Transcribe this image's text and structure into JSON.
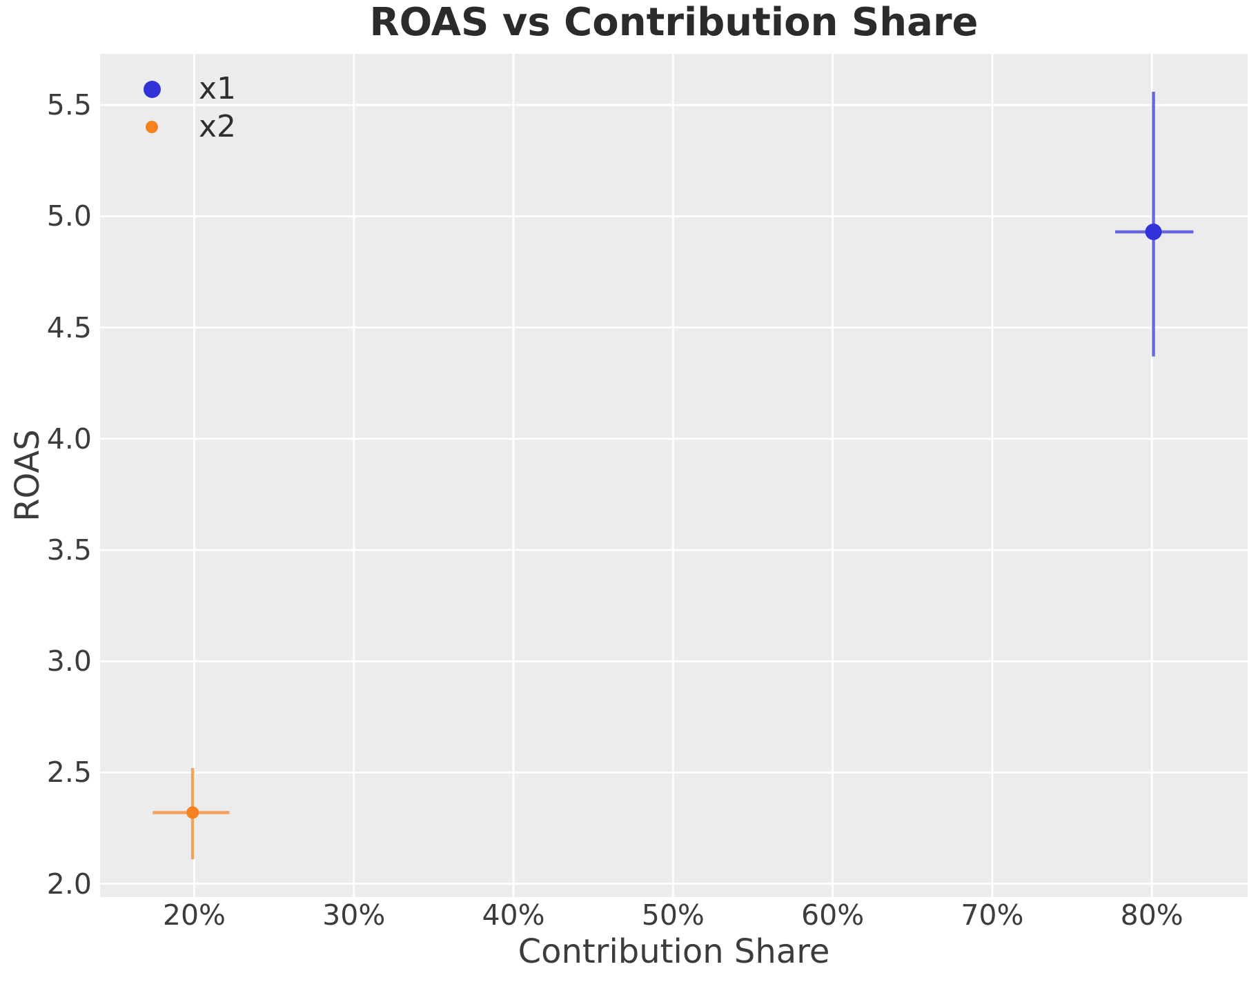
{
  "title": "ROAS vs Contribution Share",
  "colors": {
    "figure_background": "#ffffff",
    "plot_background": "#ececec",
    "grid": "#ffffff",
    "title_text": "#2b2b2b",
    "axis_text": "#3c3c3c",
    "series_x1": "#3232d9",
    "series_x2": "#f5821f"
  },
  "chart_data": {
    "type": "scatter",
    "title": "ROAS vs Contribution Share",
    "xlabel": "Contribution Share",
    "ylabel": "ROAS",
    "x_unit": "percent",
    "xlim": [
      14.1,
      86.0
    ],
    "ylim": [
      1.94,
      5.73
    ],
    "grid": true,
    "grid_color": "#ffffff",
    "plot_background": "#ececec",
    "legend_position": "upper left",
    "error_bar_alpha": 0.72,
    "error_bar_width": 4.5,
    "x_ticks": [
      {
        "value": 20,
        "label": "20%"
      },
      {
        "value": 30,
        "label": "30%"
      },
      {
        "value": 40,
        "label": "40%"
      },
      {
        "value": 50,
        "label": "50%"
      },
      {
        "value": 60,
        "label": "60%"
      },
      {
        "value": 70,
        "label": "70%"
      },
      {
        "value": 80,
        "label": "80%"
      }
    ],
    "y_ticks": [
      {
        "value": 2.0,
        "label": "2.0"
      },
      {
        "value": 2.5,
        "label": "2.5"
      },
      {
        "value": 3.0,
        "label": "3.0"
      },
      {
        "value": 3.5,
        "label": "3.5"
      },
      {
        "value": 4.0,
        "label": "4.0"
      },
      {
        "value": 4.5,
        "label": "4.5"
      },
      {
        "value": 5.0,
        "label": "5.0"
      },
      {
        "value": 5.5,
        "label": "5.5"
      }
    ],
    "series": [
      {
        "name": "x1",
        "color": "#3232d9",
        "marker_radius": 12,
        "legend_marker_radius": 12.5,
        "points": [
          {
            "x": 80.1,
            "y": 4.93,
            "x_err": [
              77.7,
              82.6
            ],
            "y_err": [
              4.37,
              5.56
            ]
          }
        ]
      },
      {
        "name": "x2",
        "color": "#f5821f",
        "marker_radius": 9,
        "legend_marker_radius": 9,
        "points": [
          {
            "x": 19.9,
            "y": 2.32,
            "x_err": [
              17.4,
              22.2
            ],
            "y_err": [
              2.11,
              2.52
            ]
          }
        ]
      }
    ]
  }
}
